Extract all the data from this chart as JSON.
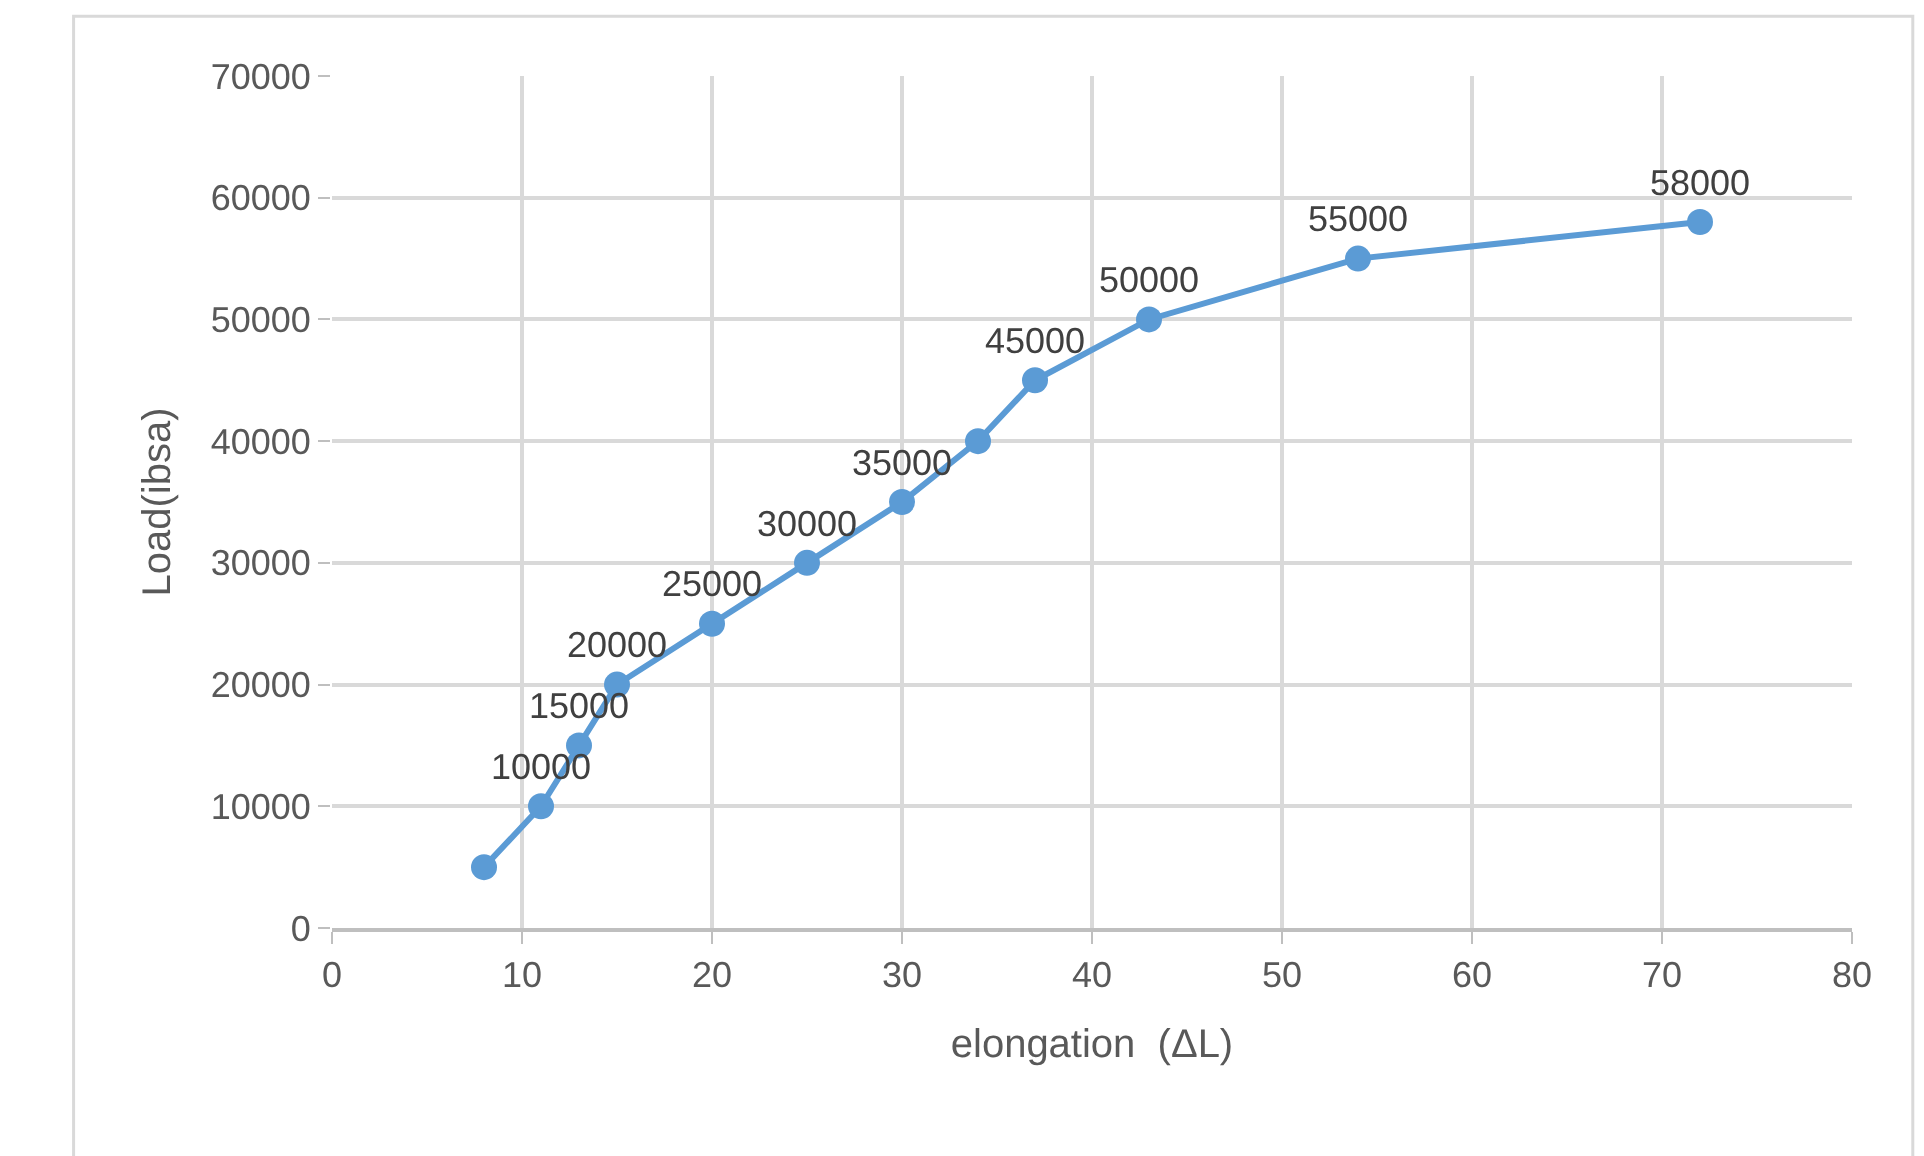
{
  "chart_data": {
    "type": "line",
    "xlabel": "elongation  (ΔL)",
    "ylabel": "Load(ibsa)",
    "x": [
      8,
      11,
      13,
      15,
      20,
      25,
      30,
      34,
      37,
      43,
      54,
      72
    ],
    "series": [
      {
        "color": "#5b9bd5",
        "values": [
          5000,
          10000,
          15000,
          20000,
          25000,
          30000,
          35000,
          40000,
          45000,
          50000,
          55000,
          58000
        ],
        "value_labels": [
          null,
          "10000",
          "15000",
          "20000",
          "25000",
          "30000",
          "35000",
          null,
          "45000",
          "50000",
          "55000",
          "58000"
        ]
      }
    ],
    "xlim": [
      0,
      80
    ],
    "xticks": [
      0,
      10,
      20,
      30,
      40,
      50,
      60,
      70,
      80
    ],
    "ylim": [
      0,
      70000
    ],
    "yticks": [
      0,
      10000,
      20000,
      30000,
      40000,
      50000,
      60000,
      70000
    ],
    "grid": true,
    "marker": "circle",
    "line_style": "solid"
  }
}
